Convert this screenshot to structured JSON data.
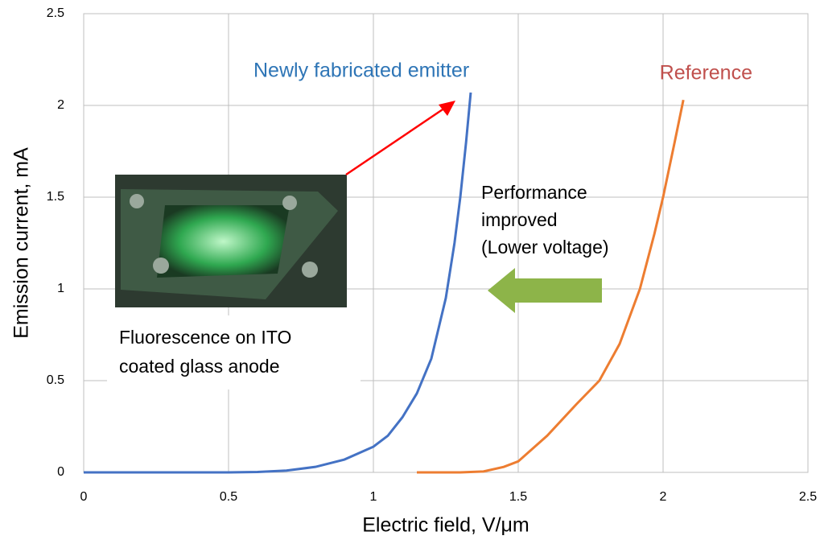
{
  "chart_data": {
    "type": "line",
    "xlabel": "Electric field, V/μm",
    "ylabel": "Emission current, mA",
    "xlim": [
      0,
      2.5
    ],
    "xticks": [
      0,
      0.5,
      1,
      1.5,
      2,
      2.5
    ],
    "ylim": [
      0,
      2.5
    ],
    "yticks": [
      0,
      0.5,
      1,
      1.5,
      2,
      2.5
    ],
    "grid": true,
    "series": [
      {
        "name": "Newly fabricated emitter",
        "color": "#4472c4",
        "x": [
          0,
          0.5,
          0.6,
          0.7,
          0.8,
          0.9,
          1.0,
          1.05,
          1.1,
          1.15,
          1.2,
          1.25,
          1.28,
          1.3,
          1.32,
          1.336
        ],
        "values": [
          0,
          0,
          0.002,
          0.01,
          0.03,
          0.07,
          0.14,
          0.2,
          0.3,
          0.43,
          0.62,
          0.95,
          1.25,
          1.5,
          1.8,
          2.07
        ]
      },
      {
        "name": "Reference",
        "color": "#ed7d31",
        "x": [
          1.15,
          1.3,
          1.38,
          1.45,
          1.5,
          1.6,
          1.7,
          1.78,
          1.85,
          1.92,
          1.97,
          2.0,
          2.04,
          2.07
        ],
        "values": [
          0,
          0,
          0.005,
          0.03,
          0.06,
          0.2,
          0.37,
          0.5,
          0.7,
          1.0,
          1.3,
          1.5,
          1.8,
          2.03
        ]
      }
    ],
    "annotations": {
      "performance": [
        "Performance",
        "improved",
        "(Lower voltage)"
      ],
      "photo_caption": [
        "Fluorescence on ITO",
        "coated glass anode"
      ]
    }
  }
}
